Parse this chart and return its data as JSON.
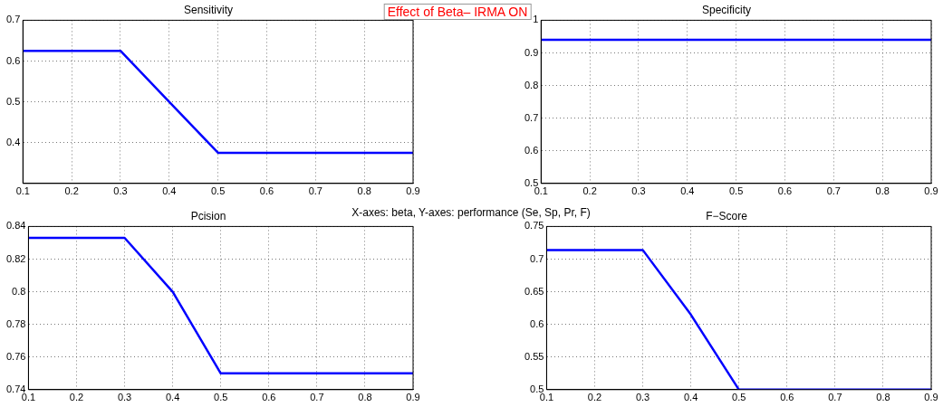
{
  "chart_data": [
    {
      "type": "line",
      "title": "Sensitivity",
      "annotations": [
        "Effect of Beta– IRMA ON"
      ],
      "x": [
        0.1,
        0.2,
        0.3,
        0.4,
        0.5,
        0.6,
        0.7,
        0.8,
        0.9
      ],
      "series": [
        {
          "color": "#0000ff",
          "values": [
            0.625,
            0.625,
            0.625,
            0.5,
            0.375,
            0.375,
            0.375,
            0.375,
            0.375
          ]
        }
      ],
      "xlim": [
        0.1,
        0.9
      ],
      "xticks": [
        0.1,
        0.2,
        0.3,
        0.4,
        0.5,
        0.6,
        0.7,
        0.8,
        0.9
      ],
      "ylim": [
        0.3,
        0.7
      ],
      "yticks": [
        {
          "value": 0.3,
          "label": null
        },
        0.4,
        0.5,
        0.6,
        0.7
      ],
      "grid": true,
      "marker": "none",
      "line_style": "solid"
    },
    {
      "type": "line",
      "title": "Specificity",
      "x": [
        0.1,
        0.2,
        0.3,
        0.4,
        0.5,
        0.6,
        0.7,
        0.8,
        0.9
      ],
      "series": [
        {
          "color": "#0000ff",
          "values": [
            0.94,
            0.94,
            0.94,
            0.94,
            0.94,
            0.94,
            0.94,
            0.94,
            0.94
          ]
        }
      ],
      "xlim": [
        0.1,
        0.9
      ],
      "xticks": [
        0.1,
        0.2,
        0.3,
        0.4,
        0.5,
        0.6,
        0.7,
        0.8,
        0.9
      ],
      "ylim": [
        0.5,
        1
      ],
      "yticks": [
        0.5,
        0.6,
        0.7,
        0.8,
        0.9,
        1
      ],
      "grid": true,
      "marker": "none",
      "line_style": "solid"
    },
    {
      "type": "line",
      "title": "Pcision",
      "annotations": [
        "X-axes: beta, Y-axes: performance (Se, Sp, Pr, F)"
      ],
      "x": [
        0.1,
        0.2,
        0.3,
        0.4,
        0.5,
        0.6,
        0.7,
        0.8,
        0.9
      ],
      "series": [
        {
          "color": "#0000ff",
          "values": [
            0.833,
            0.833,
            0.833,
            0.8,
            0.75,
            0.75,
            0.75,
            0.75,
            0.75
          ]
        }
      ],
      "xlim": [
        0.1,
        0.9
      ],
      "xticks": [
        0.1,
        0.2,
        0.3,
        0.4,
        0.5,
        0.6,
        0.7,
        0.8,
        0.9
      ],
      "ylim": [
        0.74,
        0.84
      ],
      "yticks": [
        0.74,
        0.76,
        0.78,
        0.8,
        0.82,
        0.84
      ],
      "grid": true,
      "marker": "none",
      "line_style": "solid"
    },
    {
      "type": "line",
      "title": "F−Score",
      "x": [
        0.1,
        0.2,
        0.3,
        0.4,
        0.5,
        0.6,
        0.7,
        0.8,
        0.9
      ],
      "series": [
        {
          "color": "#0000ff",
          "values": [
            0.714,
            0.714,
            0.714,
            0.615,
            0.5,
            0.5,
            0.5,
            0.5,
            0.5
          ]
        }
      ],
      "xlim": [
        0.1,
        0.9
      ],
      "xticks": [
        0.1,
        0.2,
        0.3,
        0.4,
        0.5,
        0.6,
        0.7,
        0.8,
        0.9
      ],
      "ylim": [
        0.5,
        0.75
      ],
      "yticks": [
        0.5,
        0.55,
        0.6,
        0.65,
        0.7,
        0.75
      ],
      "grid": true,
      "marker": "none",
      "line_style": "solid"
    }
  ]
}
